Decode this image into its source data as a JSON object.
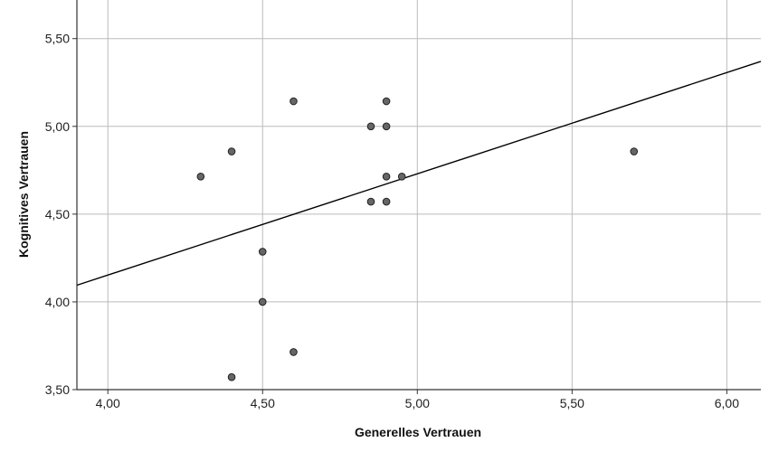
{
  "chart_data": {
    "type": "scatter",
    "title": "",
    "xlabel": "Generelles Vertrauen",
    "ylabel": "Kognitives Vertrauen",
    "xlim": [
      3.9,
      6.11
    ],
    "ylim": [
      3.5,
      5.72
    ],
    "x_ticks": [
      4.0,
      4.5,
      5.0,
      5.5,
      6.0
    ],
    "x_tick_labels": [
      "4,00",
      "4,50",
      "5,00",
      "5,50",
      "6,00"
    ],
    "y_ticks": [
      3.5,
      4.0,
      4.5,
      5.0,
      5.5
    ],
    "y_tick_labels": [
      "3,50",
      "4,00",
      "4,50",
      "5,00",
      "5,50"
    ],
    "grid": true,
    "legend": "none",
    "points": [
      {
        "x": 4.3,
        "y": 4.714
      },
      {
        "x": 4.4,
        "y": 4.857
      },
      {
        "x": 4.4,
        "y": 3.571
      },
      {
        "x": 4.5,
        "y": 4.286
      },
      {
        "x": 4.5,
        "y": 4.0
      },
      {
        "x": 4.6,
        "y": 5.143
      },
      {
        "x": 4.6,
        "y": 3.714
      },
      {
        "x": 4.85,
        "y": 5.0
      },
      {
        "x": 4.85,
        "y": 4.571
      },
      {
        "x": 4.9,
        "y": 5.143
      },
      {
        "x": 4.9,
        "y": 5.0
      },
      {
        "x": 4.9,
        "y": 4.714
      },
      {
        "x": 4.9,
        "y": 4.571
      },
      {
        "x": 4.95,
        "y": 4.714
      },
      {
        "x": 5.7,
        "y": 4.857
      }
    ],
    "fit_line": {
      "x1": 3.9,
      "y1": 4.095,
      "x2": 6.11,
      "y2": 5.37
    },
    "colors": {
      "marker_fill": "#666666",
      "marker_stroke": "#222222",
      "grid": "#bbbbbb",
      "line": "#000000",
      "axis": "#333333"
    }
  }
}
